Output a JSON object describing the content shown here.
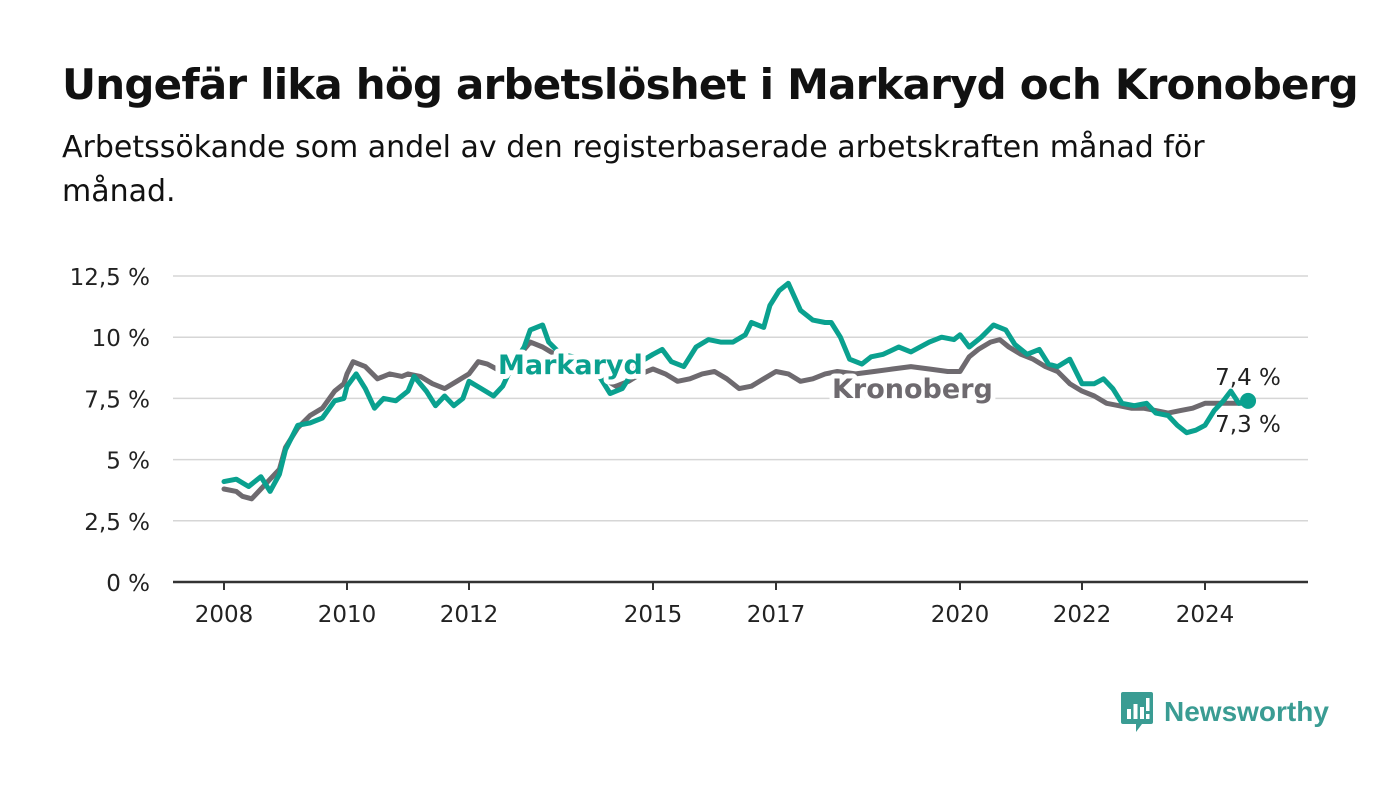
{
  "header": {
    "title": "Ungefär lika hög arbetslöshet i Markaryd och Kronoberg",
    "subtitle": "Arbetssökande som andel av den registerbaserade arbetskraften månad för månad."
  },
  "brand": {
    "name": "Newsworthy",
    "icon": "newsworthy-logo-icon",
    "color": "#3a9c93"
  },
  "chart_data": {
    "type": "line",
    "title": "Ungefär lika hög arbetslöshet i Markaryd och Kronoberg",
    "subtitle": "Arbetssökande som andel av den registerbaserade arbetskraften månad för månad.",
    "xlabel": "",
    "ylabel": "",
    "xlim": [
      2008.0,
      2025.0
    ],
    "ylim": [
      0,
      12.5
    ],
    "grid": true,
    "legend": "inline labels",
    "x_ticks": [
      2008,
      2010,
      2012,
      2015,
      2017,
      2020,
      2022,
      2024
    ],
    "x_tick_labels": [
      "2008",
      "2010",
      "2012",
      "2015",
      "2017",
      "2020",
      "2022",
      "2024"
    ],
    "y_ticks": [
      0,
      2.5,
      5,
      7.5,
      10,
      12.5
    ],
    "y_tick_labels": [
      "0 %",
      "2,5 %",
      "5 %",
      "7,5 %",
      "10 %",
      "12,5 %"
    ],
    "series": [
      {
        "name": "Kronoberg",
        "color": "#6e6a6f",
        "end_label": "7,3 %",
        "points": [
          [
            2008.0,
            3.8
          ],
          [
            2008.2,
            3.7
          ],
          [
            2008.3,
            3.5
          ],
          [
            2008.45,
            3.4
          ],
          [
            2008.6,
            3.8
          ],
          [
            2008.75,
            4.2
          ],
          [
            2008.9,
            4.6
          ],
          [
            2009.0,
            5.5
          ],
          [
            2009.2,
            6.3
          ],
          [
            2009.4,
            6.8
          ],
          [
            2009.6,
            7.1
          ],
          [
            2009.8,
            7.8
          ],
          [
            2009.95,
            8.1
          ],
          [
            2010.0,
            8.5
          ],
          [
            2010.1,
            9.0
          ],
          [
            2010.3,
            8.8
          ],
          [
            2010.5,
            8.3
          ],
          [
            2010.7,
            8.5
          ],
          [
            2010.9,
            8.4
          ],
          [
            2011.0,
            8.5
          ],
          [
            2011.2,
            8.4
          ],
          [
            2011.4,
            8.1
          ],
          [
            2011.6,
            7.9
          ],
          [
            2011.8,
            8.2
          ],
          [
            2012.0,
            8.5
          ],
          [
            2012.15,
            9.0
          ],
          [
            2012.3,
            8.9
          ],
          [
            2012.45,
            8.7
          ],
          [
            2012.6,
            8.8
          ],
          [
            2012.8,
            9.2
          ],
          [
            2012.9,
            9.5
          ],
          [
            2013.0,
            9.8
          ],
          [
            2013.2,
            9.6
          ],
          [
            2013.4,
            9.3
          ],
          [
            2013.6,
            9.0
          ],
          [
            2013.8,
            8.8
          ],
          [
            2014.0,
            8.6
          ],
          [
            2014.2,
            8.3
          ],
          [
            2014.4,
            8.0
          ],
          [
            2014.6,
            8.2
          ],
          [
            2014.8,
            8.5
          ],
          [
            2015.0,
            8.7
          ],
          [
            2015.2,
            8.5
          ],
          [
            2015.4,
            8.2
          ],
          [
            2015.6,
            8.3
          ],
          [
            2015.8,
            8.5
          ],
          [
            2016.0,
            8.6
          ],
          [
            2016.2,
            8.3
          ],
          [
            2016.4,
            7.9
          ],
          [
            2016.6,
            8.0
          ],
          [
            2016.8,
            8.3
          ],
          [
            2017.0,
            8.6
          ],
          [
            2017.2,
            8.5
          ],
          [
            2017.4,
            8.2
          ],
          [
            2017.6,
            8.3
          ],
          [
            2017.8,
            8.5
          ],
          [
            2018.0,
            8.6
          ],
          [
            2018.3,
            8.5
          ],
          [
            2018.6,
            8.6
          ],
          [
            2018.9,
            8.7
          ],
          [
            2019.2,
            8.8
          ],
          [
            2019.5,
            8.7
          ],
          [
            2019.8,
            8.6
          ],
          [
            2020.0,
            8.6
          ],
          [
            2020.15,
            9.2
          ],
          [
            2020.3,
            9.5
          ],
          [
            2020.5,
            9.8
          ],
          [
            2020.65,
            9.9
          ],
          [
            2020.8,
            9.6
          ],
          [
            2021.0,
            9.3
          ],
          [
            2021.2,
            9.1
          ],
          [
            2021.4,
            8.8
          ],
          [
            2021.6,
            8.6
          ],
          [
            2021.8,
            8.1
          ],
          [
            2022.0,
            7.8
          ],
          [
            2022.2,
            7.6
          ],
          [
            2022.4,
            7.3
          ],
          [
            2022.6,
            7.2
          ],
          [
            2022.8,
            7.1
          ],
          [
            2023.0,
            7.1
          ],
          [
            2023.2,
            7.0
          ],
          [
            2023.4,
            6.9
          ],
          [
            2023.6,
            7.0
          ],
          [
            2023.8,
            7.1
          ],
          [
            2024.0,
            7.3
          ],
          [
            2024.2,
            7.3
          ],
          [
            2024.4,
            7.3
          ],
          [
            2024.6,
            7.3
          ],
          [
            2024.7,
            7.3
          ]
        ]
      },
      {
        "name": "Markaryd",
        "color": "#0aa18f",
        "end_label": "7,4 %",
        "points": [
          [
            2008.0,
            4.1
          ],
          [
            2008.2,
            4.2
          ],
          [
            2008.4,
            3.9
          ],
          [
            2008.6,
            4.3
          ],
          [
            2008.75,
            3.7
          ],
          [
            2008.9,
            4.4
          ],
          [
            2009.0,
            5.4
          ],
          [
            2009.2,
            6.4
          ],
          [
            2009.4,
            6.5
          ],
          [
            2009.6,
            6.7
          ],
          [
            2009.8,
            7.4
          ],
          [
            2009.95,
            7.5
          ],
          [
            2010.0,
            8.0
          ],
          [
            2010.15,
            8.5
          ],
          [
            2010.3,
            7.9
          ],
          [
            2010.45,
            7.1
          ],
          [
            2010.6,
            7.5
          ],
          [
            2010.8,
            7.4
          ],
          [
            2011.0,
            7.8
          ],
          [
            2011.1,
            8.4
          ],
          [
            2011.3,
            7.8
          ],
          [
            2011.45,
            7.2
          ],
          [
            2011.6,
            7.6
          ],
          [
            2011.75,
            7.2
          ],
          [
            2011.9,
            7.5
          ],
          [
            2012.0,
            8.2
          ],
          [
            2012.2,
            7.9
          ],
          [
            2012.4,
            7.6
          ],
          [
            2012.55,
            8.0
          ],
          [
            2012.7,
            8.8
          ],
          [
            2012.9,
            9.6
          ],
          [
            2013.0,
            10.3
          ],
          [
            2013.2,
            10.5
          ],
          [
            2013.3,
            9.8
          ],
          [
            2013.5,
            9.3
          ],
          [
            2013.7,
            9.2
          ],
          [
            2013.9,
            8.9
          ],
          [
            2014.0,
            8.8
          ],
          [
            2014.15,
            8.3
          ],
          [
            2014.3,
            7.7
          ],
          [
            2014.5,
            7.9
          ],
          [
            2014.65,
            8.5
          ],
          [
            2014.8,
            9.0
          ],
          [
            2015.0,
            9.3
          ],
          [
            2015.15,
            9.5
          ],
          [
            2015.3,
            9.0
          ],
          [
            2015.5,
            8.8
          ],
          [
            2015.7,
            9.6
          ],
          [
            2015.9,
            9.9
          ],
          [
            2016.1,
            9.8
          ],
          [
            2016.3,
            9.8
          ],
          [
            2016.5,
            10.1
          ],
          [
            2016.6,
            10.6
          ],
          [
            2016.8,
            10.4
          ],
          [
            2016.9,
            11.3
          ],
          [
            2017.05,
            11.9
          ],
          [
            2017.2,
            12.2
          ],
          [
            2017.4,
            11.1
          ],
          [
            2017.6,
            10.7
          ],
          [
            2017.8,
            10.6
          ],
          [
            2017.9,
            10.6
          ],
          [
            2018.05,
            10.0
          ],
          [
            2018.2,
            9.1
          ],
          [
            2018.4,
            8.9
          ],
          [
            2018.55,
            9.2
          ],
          [
            2018.75,
            9.3
          ],
          [
            2019.0,
            9.6
          ],
          [
            2019.2,
            9.4
          ],
          [
            2019.5,
            9.8
          ],
          [
            2019.7,
            10.0
          ],
          [
            2019.9,
            9.9
          ],
          [
            2020.0,
            10.1
          ],
          [
            2020.15,
            9.6
          ],
          [
            2020.35,
            10.0
          ],
          [
            2020.55,
            10.5
          ],
          [
            2020.75,
            10.3
          ],
          [
            2020.9,
            9.7
          ],
          [
            2021.1,
            9.3
          ],
          [
            2021.3,
            9.5
          ],
          [
            2021.45,
            8.9
          ],
          [
            2021.6,
            8.8
          ],
          [
            2021.8,
            9.1
          ],
          [
            2022.0,
            8.1
          ],
          [
            2022.2,
            8.1
          ],
          [
            2022.35,
            8.3
          ],
          [
            2022.5,
            7.9
          ],
          [
            2022.65,
            7.3
          ],
          [
            2022.85,
            7.2
          ],
          [
            2023.05,
            7.3
          ],
          [
            2023.2,
            6.9
          ],
          [
            2023.4,
            6.8
          ],
          [
            2023.55,
            6.4
          ],
          [
            2023.7,
            6.1
          ],
          [
            2023.85,
            6.2
          ],
          [
            2024.0,
            6.4
          ],
          [
            2024.15,
            7.0
          ],
          [
            2024.3,
            7.4
          ],
          [
            2024.42,
            7.8
          ],
          [
            2024.55,
            7.3
          ],
          [
            2024.7,
            7.4
          ]
        ]
      }
    ]
  }
}
